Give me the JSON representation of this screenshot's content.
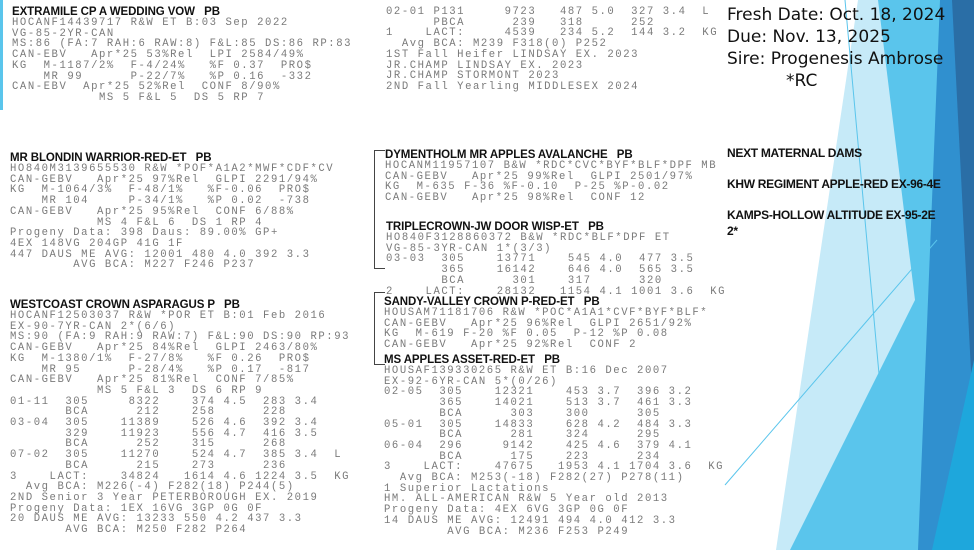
{
  "colors": {
    "pale_blue": "#c6eaf8",
    "medium_blue": "#5ac5ec",
    "cyan": "#1ea7dc",
    "dark_blue": "#3090cf",
    "navy": "#2a6ea6"
  },
  "blocks": {
    "extramile": {
      "title": "EXTRAMILE CP A WEDDING VOW   PB",
      "lines": [
        "HOCANF14439717 R&W ET B:03 Sep 2022",
        "VG-85-2YR-CAN",
        "MS:86 (FA:7 RAH:6 RAW:8) F&L:85 DS:86 RP:83",
        "CAN-EBV   Apr*25 53%Rel  LPI 2584/49%",
        "KG  M-1187/2%  F-4/24%   %F 0.37  PRO$",
        "    MR 99      P-22/7%   %P 0.16  -332",
        "CAN-EBV  Apr*25 52%Rel  CONF 8/90%",
        "           MS 5 F&L 5  DS 5 RP 7"
      ]
    },
    "extramile_cont": {
      "title": "",
      "lines": [
        "02-01 P131     9723   487 5.0  327 3.4  L",
        "      PBCA      239   318      252",
        "1    LACT:     4539   234 5.2  144 3.2  KG",
        "  Avg BCA: M239 F318(0) P252",
        "1ST Fall Heifer LINDSAY EX. 2023",
        "JR.CHAMP LINDSAY EX. 2023",
        "JR.CHAMP STORMONT 2023",
        "2ND Fall Yearling MIDDLESEX 2024"
      ]
    },
    "blondin": {
      "title": "MR BLONDIN WARRIOR-RED-ET   PB",
      "lines": [
        "HO840M3139655530 R&W *POF*A1A2*MWF*CDF*CV",
        "CAN-GEBV   Apr*25 97%Rel  GLPI 2291/94%",
        "KG  M-1064/3%  F-48/1%   %F-0.06  PRO$",
        "    MR 104     P-34/1%   %P 0.02  -738",
        "CAN-GEBV   Apr*25 95%Rel  CONF 6/88%",
        "           MS 4 F&L 6  DS 1 RP 4",
        "Progeny Data: 398 Daus: 89.00% GP+",
        "4EX 148VG 204GP 41G 1F",
        "447 DAUS ME AVG: 12001 480 4.0 392 3.3",
        "        AVG BCA: M227 F246 P237"
      ]
    },
    "westcoast": {
      "title": "WESTCOAST CROWN ASPARAGUS P   PB",
      "lines": [
        "HOCANF12503037 R&W *POR ET B:01 Feb 2016",
        "EX-90-7YR-CAN 2*(6/6)",
        "MS:90 (FA:9 RAH:9 RAW:7) F&L:90 DS:90 RP:93",
        "CAN-GEBV   Apr*25 84%Rel  GLPI 2463/80%",
        "KG  M-1380/1%  F-27/8%   %F 0.26  PRO$",
        "    MR 95      P-28/4%   %P 0.17  -817",
        "CAN-GEBV   Apr*25 81%Rel  CONF 7/85%",
        "           MS 5 F&L 3  DS 6 RP 9",
        "01-11  305     8322    374 4.5  283 3.4",
        "       BCA      212    258      228",
        "03-04  305    11389    526 4.6  392 3.4",
        "       329    11923    556 4.7  416 3.5",
        "       BCA      252    315      268",
        "07-02  305    11270    524 4.7  385 3.4  L",
        "       BCA      215    273      236",
        "3    LACT:    34824   1614 4.6 1224 3.5  KG",
        "  Avg BCA: M226(-4) F282(18) P244(5)",
        "2ND Senior 3 Year PETERBOROUGH EX. 2019",
        "Progeny Data: 1EX 16VG 3GP 0G 0F",
        "20 DAUS ME AVG: 13233 550 4.2 437 3.3",
        "       AVG BCA: M250 F282 P264"
      ]
    },
    "dymentholm": {
      "title": "DYMENTHOLM MR APPLES AVALANCHE   PB",
      "lines": [
        "HOCANM11957107 B&W *RDC*CVC*BYF*BLF*DPF MB",
        "CAN-GEBV   Apr*25 99%Rel  GLPI 2501/97%",
        "KG  M-635 F-36 %F-0.10  P-25 %P-0.02",
        "CAN-GEBV   Apr*25 98%Rel  CONF 12"
      ]
    },
    "triplecrown": {
      "title": "TRIPLECROWN-JW DOOR WISP-ET   PB",
      "lines": [
        "HO840F3128860372 B&W *RDC*BLF*DPF ET",
        "VG-85-3YR-CAN 1*(3/3)",
        "03-03  305    13771    545 4.0  477 3.5",
        "       365    16142    646 4.0  565 3.5",
        "       BCA      301    317      320",
        "2    LACT:    28132   1154 4.1 1001 3.6  KG"
      ]
    },
    "sandy": {
      "title": "SANDY-VALLEY CROWN P-RED-ET   PB",
      "lines": [
        "HOUSAM71181706 R&W *POC*A1A1*CVF*BYF*BLF*",
        "CAN-GEBV   Apr*25 96%Rel  GLPI 2651/92%",
        "KG  M-619 F-20 %F 0.05  P-12 %P 0.08",
        "CAN-GEBV   Apr*25 92%Rel  CONF 2"
      ]
    },
    "msapples": {
      "title": "MS APPLES ASSET-RED-ET   PB",
      "lines": [
        "HOUSAF139330265 R&W ET B:16 Dec 2007",
        "EX-92-6YR-CAN 5*(0/26)",
        "02-05  305    12321    453 3.7  396 3.2",
        "       365    14021    513 3.7  461 3.3",
        "       BCA      303    300      305",
        "05-01  305    14833    628 4.2  484 3.3",
        "       BCA      281    324      295",
        "06-04  296     9142    425 4.6  379 4.1",
        "       BCA      175    223      234",
        "3    LACT:    47675   1953 4.1 1704 3.6  KG",
        "  Avg BCA: M253(-18) F282(27) P278(11)",
        "1 Superior Lactations",
        "HM. ALL-AMERICAN R&W 5 Year old 2013",
        "Progeny Data: 4EX 6VG 3GP 0G 0F",
        "14 DAUS ME AVG: 12491 494 4.0 412 3.3",
        "        AVG BCA: M236 F253 P249"
      ]
    }
  },
  "summary": {
    "fresh_date": "Fresh Date: Oct. 18, 2024",
    "due": "Due: Nov. 13, 2025",
    "sire": "Sire: Progenesis Ambrose",
    "sire_suffix": "*RC",
    "next_dams_heading": "NEXT MATERNAL DAMS",
    "dam1": "KHW REGIMENT APPLE-RED EX-96-4E",
    "dam2_line1": "KAMPS-HOLLOW ALTITUDE EX-95-2E",
    "dam2_line2": "2*"
  }
}
